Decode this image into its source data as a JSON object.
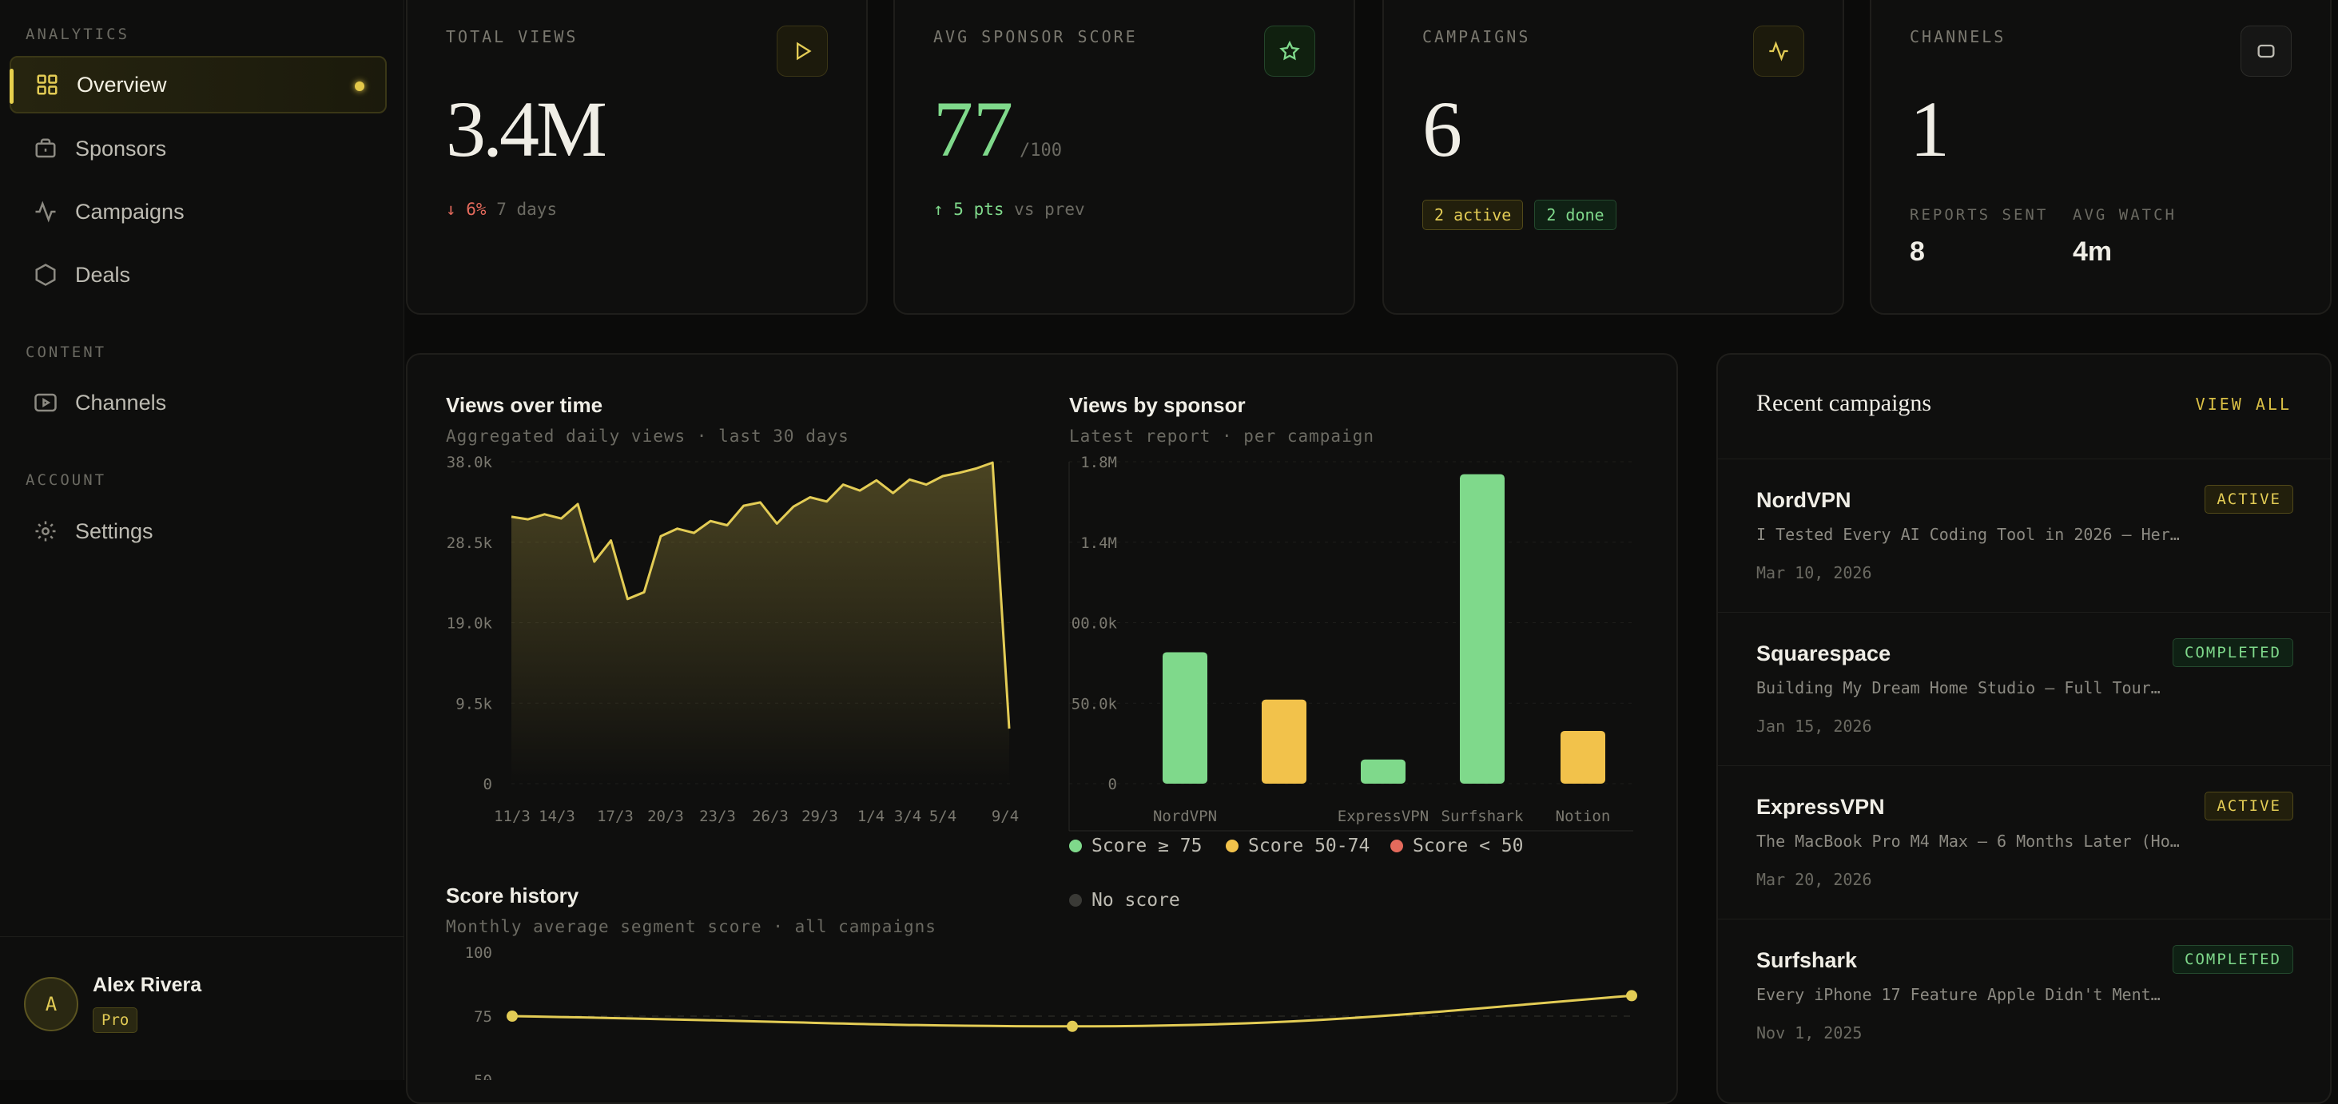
{
  "sidebar": {
    "sections": {
      "analytics": "ANALYTICS",
      "content": "CONTENT",
      "account": "ACCOUNT"
    },
    "items": [
      {
        "label": "Overview",
        "icon": "grid-icon",
        "active": true
      },
      {
        "label": "Sponsors",
        "icon": "briefcase-icon"
      },
      {
        "label": "Campaigns",
        "icon": "activity-icon"
      },
      {
        "label": "Deals",
        "icon": "hexagon-icon"
      },
      {
        "label": "Channels",
        "icon": "video-icon"
      },
      {
        "label": "Settings",
        "icon": "gear-icon"
      }
    ],
    "user": {
      "initial": "A",
      "name": "Alex Rivera",
      "plan": "Pro"
    }
  },
  "stats": {
    "views": {
      "label": "TOTAL VIEWS",
      "value": "3.4M",
      "delta": "↓ 6%",
      "period": "7 days"
    },
    "score": {
      "label": "AVG SPONSOR SCORE",
      "value": "77",
      "suffix": "/100",
      "delta": "↑ 5 pts",
      "period": "vs prev"
    },
    "campaigns": {
      "label": "CAMPAIGNS",
      "value": "6",
      "active": "2 active",
      "done": "2 done"
    },
    "channels": {
      "label": "CHANNELS",
      "value": "1",
      "reports_label": "REPORTS SENT",
      "reports_value": "8",
      "watch_label": "AVG WATCH",
      "watch_value": "4m"
    }
  },
  "charts": {
    "views_over_time": {
      "title": "Views over time",
      "subtitle": "Aggregated daily views · last 30 days"
    },
    "views_by_sponsor": {
      "title": "Views by sponsor",
      "subtitle": "Latest report · per campaign"
    },
    "score_history": {
      "title": "Score history",
      "subtitle": "Monthly average segment score · all campaigns"
    },
    "legend": [
      "Score ≥ 75",
      "Score 50-74",
      "Score < 50",
      "No score"
    ]
  },
  "chart_data": [
    {
      "type": "area",
      "title": "Views over time",
      "x_ticks": [
        "11/3",
        "14/3",
        "17/3",
        "20/3",
        "23/3",
        "26/3",
        "29/3",
        "1/4",
        "3/4",
        "5/4",
        "9/4"
      ],
      "y_ticks": [
        "0",
        "9.5k",
        "19.0k",
        "28.5k",
        "38.0k"
      ],
      "ylim": [
        0,
        38000
      ],
      "values": [
        31500,
        31200,
        31800,
        31300,
        33000,
        26200,
        28700,
        21800,
        22600,
        29200,
        30100,
        29600,
        31000,
        30500,
        32800,
        33200,
        30700,
        32700,
        33800,
        33300,
        35300,
        34600,
        35800,
        34300,
        35900,
        35300,
        36300,
        36700,
        37200,
        37900,
        6500
      ]
    },
    {
      "type": "bar",
      "title": "Views by sponsor",
      "y_ticks": [
        "0",
        "50.0k",
        "00.0k",
        "1.4M",
        "1.8M"
      ],
      "ylim": [
        0,
        1800000
      ],
      "categories": [
        "NordVPN",
        "",
        "ExpressVPN",
        "Surfshark",
        "Notion"
      ],
      "values": [
        735000,
        470000,
        135000,
        1730000,
        295000
      ],
      "colors": [
        "#7fd98b",
        "#f2c24b",
        "#7fd98b",
        "#7fd98b",
        "#f2c24b"
      ]
    },
    {
      "type": "line",
      "title": "Score history",
      "y_ticks": [
        "100",
        "75",
        "50"
      ],
      "ylim": [
        50,
        100
      ],
      "values": [
        75,
        71,
        83
      ]
    }
  ],
  "recent": {
    "title": "Recent campaigns",
    "view_all": "VIEW ALL",
    "items": [
      {
        "name": "NordVPN",
        "desc": "I Tested Every AI Coding Tool in 2026 — Here…",
        "date": "Mar 10, 2026",
        "status": "ACTIVE"
      },
      {
        "name": "Squarespace",
        "desc": "Building My Dream Home Studio — Full Tour…",
        "date": "Jan 15, 2026",
        "status": "COMPLETED"
      },
      {
        "name": "ExpressVPN",
        "desc": "The MacBook Pro M4 Max — 6 Months Later (Hon…",
        "date": "Mar 20, 2026",
        "status": "ACTIVE"
      },
      {
        "name": "Surfshark",
        "desc": "Every iPhone 17 Feature Apple Didn't Ment…",
        "date": "Nov 1, 2025",
        "status": "COMPLETED"
      }
    ]
  },
  "colors": {
    "accent": "#e3cc55",
    "green": "#7fd98b",
    "yellow": "#f2c24b",
    "red": "#e46a5c"
  }
}
